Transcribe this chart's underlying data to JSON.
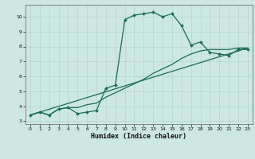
{
  "xlabel": "Humidex (Indice chaleur)",
  "bg_color": "#cce8e0",
  "grid_color": "#b8d8d0",
  "line_color": "#1a6b5a",
  "xlim": [
    -0.5,
    23.5
  ],
  "ylim": [
    2.8,
    10.8
  ],
  "xticks": [
    0,
    1,
    2,
    3,
    4,
    5,
    6,
    7,
    8,
    9,
    10,
    11,
    12,
    13,
    14,
    15,
    16,
    17,
    18,
    19,
    20,
    21,
    22,
    23
  ],
  "yticks": [
    3,
    4,
    5,
    6,
    7,
    8,
    9,
    10
  ],
  "series1_x": [
    0,
    1,
    2,
    3,
    4,
    5,
    6,
    7,
    8,
    9,
    10,
    11,
    12,
    13,
    14,
    15,
    16,
    17,
    18,
    19,
    20,
    21,
    22,
    23
  ],
  "series1_y": [
    3.4,
    3.6,
    3.4,
    3.8,
    3.9,
    3.5,
    3.6,
    3.7,
    5.2,
    5.4,
    9.8,
    10.1,
    10.2,
    10.3,
    10.0,
    10.2,
    9.4,
    8.1,
    8.3,
    7.6,
    7.5,
    7.4,
    7.8,
    7.8
  ],
  "series2_x": [
    0,
    1,
    2,
    3,
    4,
    5,
    6,
    7,
    8,
    9,
    10,
    11,
    12,
    13,
    14,
    15,
    16,
    17,
    18,
    19,
    20,
    21,
    22,
    23
  ],
  "series2_y": [
    3.4,
    3.6,
    3.4,
    3.8,
    3.9,
    3.9,
    4.1,
    4.2,
    4.6,
    4.9,
    5.2,
    5.5,
    5.8,
    6.2,
    6.5,
    6.8,
    7.2,
    7.5,
    7.7,
    7.8,
    7.8,
    7.8,
    7.9,
    7.9
  ],
  "series3_x": [
    0,
    23
  ],
  "series3_y": [
    3.4,
    7.9
  ]
}
